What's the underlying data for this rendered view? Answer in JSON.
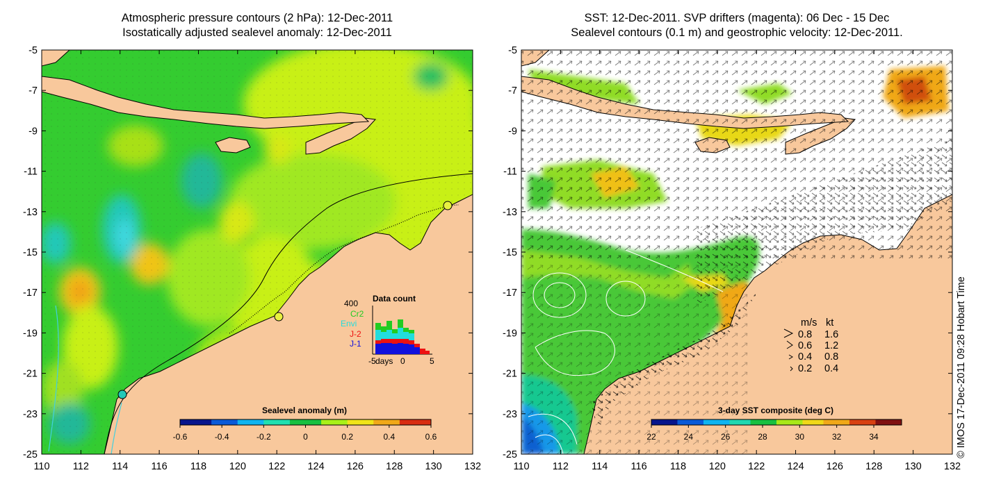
{
  "left_panel": {
    "title_line1": "Atmospheric pressure contours (2 hPa): 12-Dec-2011",
    "title_line2": "Isostatically adjusted sealevel anomaly: 12-Dec-2011",
    "x_ticks": [
      "110",
      "112",
      "114",
      "116",
      "118",
      "120",
      "122",
      "124",
      "126",
      "128",
      "130",
      "132"
    ],
    "y_ticks": [
      "-5",
      "-7",
      "-9",
      "-11",
      "-13",
      "-15",
      "-17",
      "-19",
      "-21",
      "-23",
      "-25"
    ],
    "colorbar": {
      "title": "Sealevel anomaly (m)",
      "ticks": [
        "-0.6",
        "-0.4",
        "-0.2",
        "0",
        "0.2",
        "0.4",
        "0.6"
      ],
      "range": [
        -0.6,
        0.6
      ],
      "colors": [
        "#08158c",
        "#0a5ad8",
        "#10b4f0",
        "#20e0b0",
        "#18c040",
        "#a8f018",
        "#f0e418",
        "#f0a818",
        "#d82c10"
      ]
    },
    "data_count": {
      "title": "Data count",
      "max_label": "400",
      "x_ticks": [
        "-5",
        "days",
        "0",
        "5"
      ],
      "legend": [
        {
          "label": "Cr2",
          "color": "#22cc22"
        },
        {
          "label": "Envi",
          "color": "#22dddd"
        },
        {
          "label": "J-2",
          "color": "#ee1111"
        },
        {
          "label": "J-1",
          "color": "#1111dd"
        }
      ]
    }
  },
  "right_panel": {
    "title_line1": "SST: 12-Dec-2011. SVP drifters (magenta): 06 Dec - 15 Dec",
    "title_line2": "Sealevel contours (0.1 m) and geostrophic velocity: 12-Dec-2011.",
    "x_ticks": [
      "110",
      "112",
      "114",
      "116",
      "118",
      "120",
      "122",
      "124",
      "126",
      "128",
      "130",
      "132"
    ],
    "y_ticks": [
      "-5",
      "-7",
      "-9",
      "-11",
      "-13",
      "-15",
      "-17",
      "-19",
      "-21",
      "-23",
      "-25"
    ],
    "colorbar": {
      "title": "3-day SST composite (deg C)",
      "ticks": [
        "22",
        "24",
        "26",
        "28",
        "30",
        "32",
        "34"
      ],
      "range": [
        22,
        35.5
      ],
      "colors": [
        "#08158c",
        "#0a5ad8",
        "#10b4f0",
        "#20d8b0",
        "#18c040",
        "#a8e818",
        "#f0d818",
        "#f0a818",
        "#d84010",
        "#801010"
      ]
    },
    "velocity_legend": {
      "header_ms": "m/s",
      "header_kt": "kt",
      "rows": [
        {
          "ms": "0.8",
          "kt": "1.6"
        },
        {
          "ms": "0.6",
          "kt": "1.2"
        },
        {
          "ms": "0.4",
          "kt": "0.8"
        },
        {
          "ms": "0.2",
          "kt": "0.4"
        }
      ]
    }
  },
  "credit": "© IMOS 17-Dec-2011 09:28 Hobart Time",
  "colors": {
    "land": "#f8c89c",
    "green": "#2ed02e",
    "yellow_green": "#c8f018",
    "cyan_contour": "#40d0e0"
  }
}
